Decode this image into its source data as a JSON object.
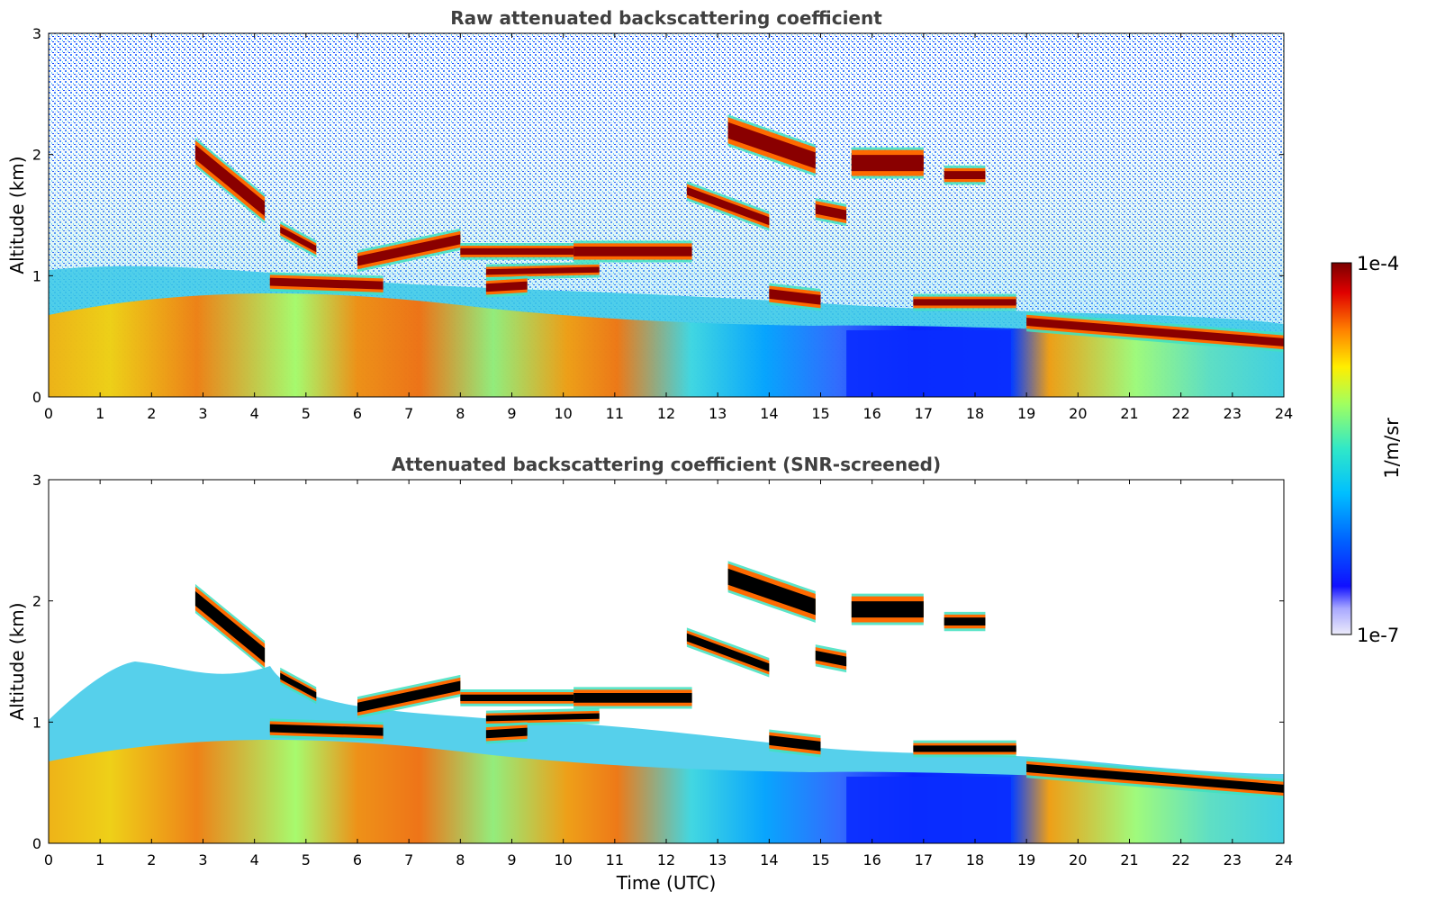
{
  "chart_data": [
    {
      "type": "heatmap",
      "title": "Raw attenuated backscattering coefficient",
      "xlabel": "",
      "ylabel": "Altitude (km)",
      "xlim": [
        0,
        24
      ],
      "ylim": [
        0,
        3
      ],
      "xticks": [
        0,
        1,
        2,
        3,
        4,
        5,
        6,
        7,
        8,
        9,
        10,
        11,
        12,
        13,
        14,
        15,
        16,
        17,
        18,
        19,
        20,
        21,
        22,
        23,
        24
      ],
      "yticks": [
        0,
        1,
        2,
        3
      ],
      "colorscale": "jet",
      "screened": false,
      "features": [
        {
          "kind": "cloud",
          "x": [
            2.85,
            4.2
          ],
          "y": [
            2.02,
            1.55
          ],
          "thickness": 0.18
        },
        {
          "kind": "cloud",
          "x": [
            4.5,
            5.2
          ],
          "y": [
            1.38,
            1.22
          ],
          "thickness": 0.08
        },
        {
          "kind": "cloud",
          "x": [
            4.3,
            6.5
          ],
          "y": [
            0.95,
            0.92
          ],
          "thickness": 0.1
        },
        {
          "kind": "cloud",
          "x": [
            6.0,
            8.0
          ],
          "y": [
            1.12,
            1.3
          ],
          "thickness": 0.12
        },
        {
          "kind": "cloud",
          "x": [
            8.0,
            10.2
          ],
          "y": [
            1.2,
            1.2
          ],
          "thickness": 0.08
        },
        {
          "kind": "cloud",
          "x": [
            10.2,
            12.5
          ],
          "y": [
            1.2,
            1.2
          ],
          "thickness": 0.12
        },
        {
          "kind": "cloud",
          "x": [
            8.5,
            10.7
          ],
          "y": [
            1.03,
            1.05
          ],
          "thickness": 0.07
        },
        {
          "kind": "cloud",
          "x": [
            8.5,
            9.3
          ],
          "y": [
            0.9,
            0.92
          ],
          "thickness": 0.1
        },
        {
          "kind": "cloud",
          "x": [
            13.2,
            14.9
          ],
          "y": [
            2.2,
            1.95
          ],
          "thickness": 0.2
        },
        {
          "kind": "cloud",
          "x": [
            12.4,
            14.0
          ],
          "y": [
            1.7,
            1.45
          ],
          "thickness": 0.1
        },
        {
          "kind": "cloud",
          "x": [
            15.6,
            17.0
          ],
          "y": [
            1.93,
            1.93
          ],
          "thickness": 0.2
        },
        {
          "kind": "cloud",
          "x": [
            17.4,
            18.2
          ],
          "y": [
            1.83,
            1.83
          ],
          "thickness": 0.1
        },
        {
          "kind": "cloud",
          "x": [
            14.9,
            15.5
          ],
          "y": [
            1.55,
            1.5
          ],
          "thickness": 0.12
        },
        {
          "kind": "cloud",
          "x": [
            14.0,
            15.0
          ],
          "y": [
            0.85,
            0.8
          ],
          "thickness": 0.12
        },
        {
          "kind": "cloud",
          "x": [
            16.8,
            18.8
          ],
          "y": [
            0.78,
            0.78
          ],
          "thickness": 0.08
        },
        {
          "kind": "cloud",
          "x": [
            19.0,
            24.0
          ],
          "y": [
            0.62,
            0.45
          ],
          "thickness": 0.1
        },
        {
          "kind": "aerosol",
          "x": [
            0,
            15.5
          ],
          "y": [
            0.25,
            0.25
          ],
          "level": "high"
        },
        {
          "kind": "clear",
          "x": [
            15.5,
            18.7
          ],
          "y": [
            0.0,
            0.55
          ],
          "level": "low"
        }
      ]
    },
    {
      "type": "heatmap",
      "title": "Attenuated backscattering coefficient (SNR-screened)",
      "xlabel": "Time (UTC)",
      "ylabel": "Altitude (km)",
      "xlim": [
        0,
        24
      ],
      "ylim": [
        0,
        3
      ],
      "xticks": [
        0,
        1,
        2,
        3,
        4,
        5,
        6,
        7,
        8,
        9,
        10,
        11,
        12,
        13,
        14,
        15,
        16,
        17,
        18,
        19,
        20,
        21,
        22,
        23,
        24
      ],
      "yticks": [
        0,
        1,
        2,
        3
      ],
      "colorscale": "jet",
      "screened": true,
      "saturated_color": "#000000",
      "features": "same as raw panel; points below SNR threshold shown as white"
    }
  ],
  "colorbar": {
    "label": "1/m/sr",
    "max_label": "1e-4",
    "min_label": "1e-7",
    "scale": "log",
    "colors": [
      "#ecebfa",
      "#4b4bff",
      "#0000ff",
      "#00aaff",
      "#26d8e6",
      "#7fff7f",
      "#ffff00",
      "#ff8000",
      "#ff0000",
      "#800000"
    ]
  }
}
